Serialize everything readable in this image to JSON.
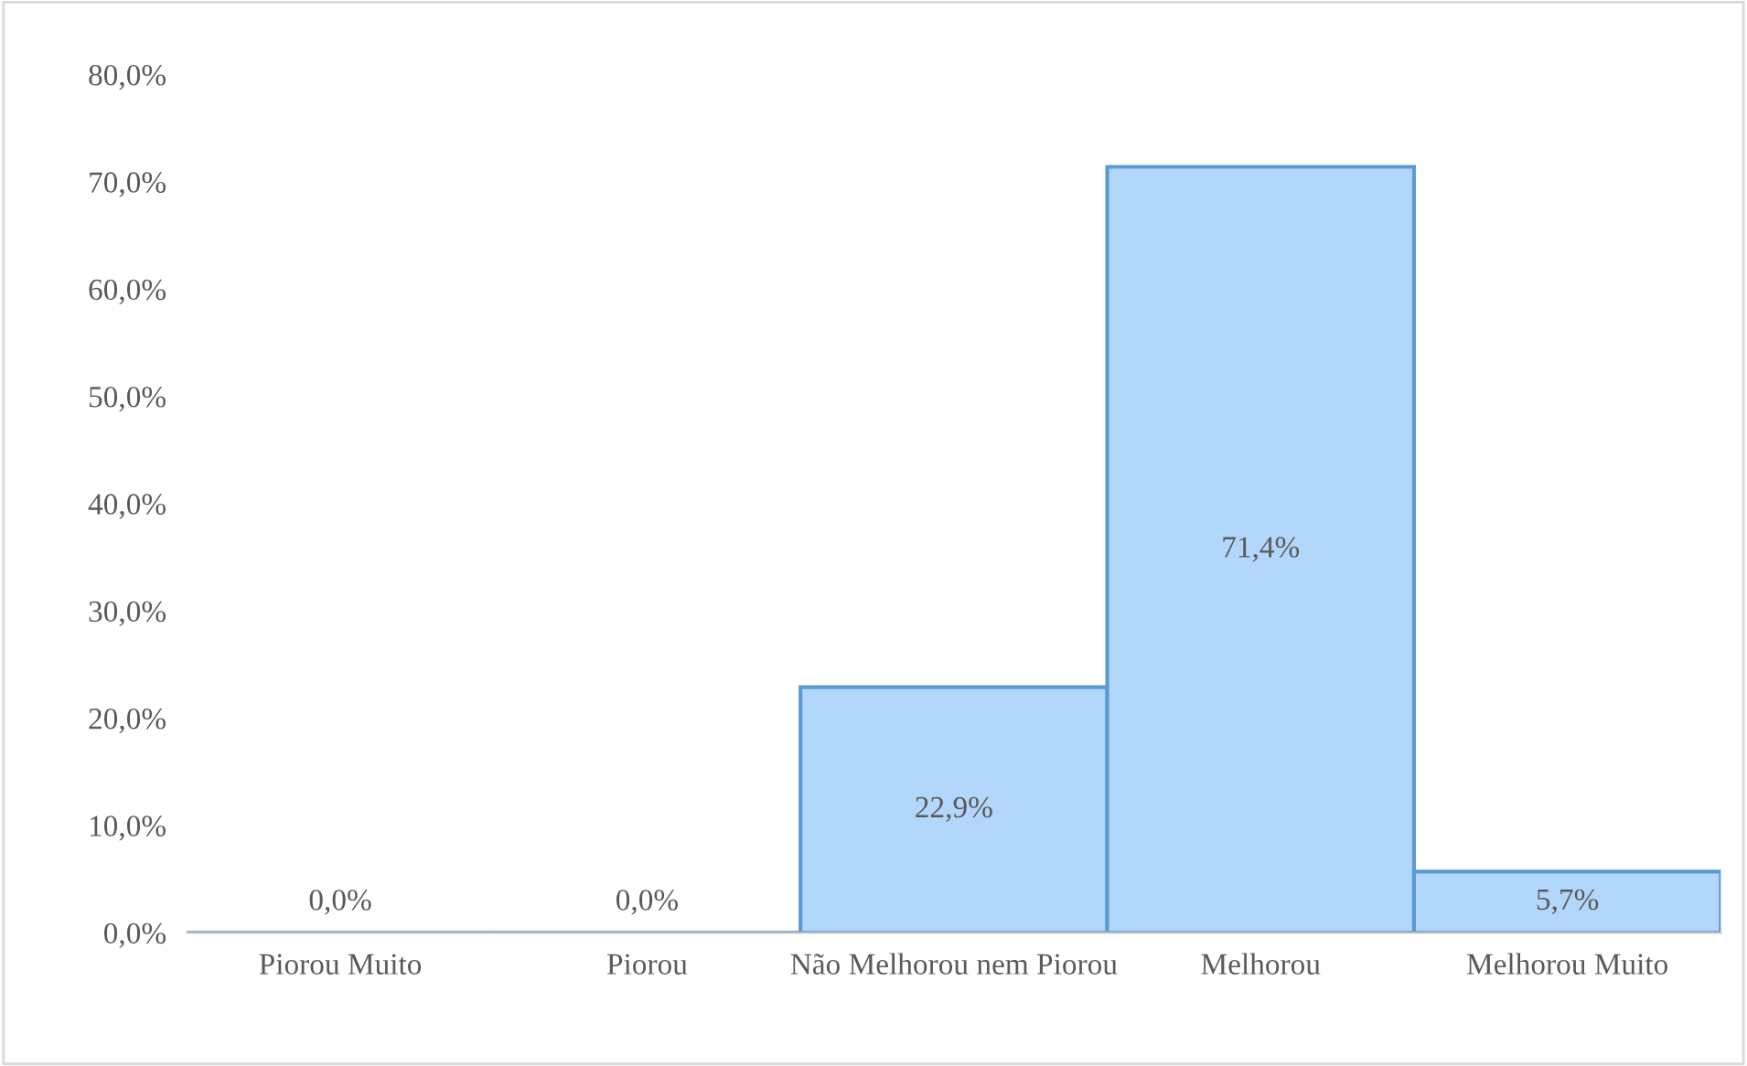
{
  "chart_data": {
    "type": "bar",
    "categories": [
      "Piorou Muito",
      "Piorou",
      "Não Melhorou nem Piorou",
      "Melhorou",
      "Melhorou Muito"
    ],
    "values": [
      0.0,
      0.0,
      22.9,
      71.4,
      5.7
    ],
    "value_labels": [
      "0,0%",
      "0,0%",
      "22,9%",
      "71,4%",
      "5,7%"
    ],
    "color": "#b3d7fb",
    "ylim": [
      0,
      80
    ],
    "yticks": [
      {
        "value": 0,
        "label": "0,0%"
      },
      {
        "value": 10,
        "label": "10,0%"
      },
      {
        "value": 20,
        "label": "20,0%"
      },
      {
        "value": 30,
        "label": "30,0%"
      },
      {
        "value": 40,
        "label": "40,0%"
      },
      {
        "value": 50,
        "label": "50,0%"
      },
      {
        "value": 60,
        "label": "60,0%"
      },
      {
        "value": 70,
        "label": "70,0%"
      },
      {
        "value": 80,
        "label": "80,0%"
      }
    ],
    "grid": false
  }
}
